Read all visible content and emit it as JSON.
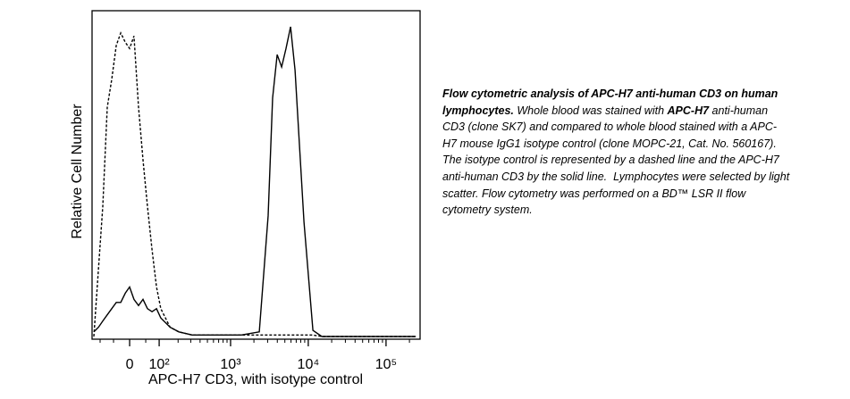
{
  "chart_data": {
    "type": "line",
    "xlabel": "APC-H7 CD3, with isotype control",
    "ylabel": "Relative Cell Number",
    "xscale": "biexponential",
    "xlim": [
      -137,
      274000
    ],
    "ylim": [
      0,
      100
    ],
    "xticks": [
      0,
      {
        "value": 100,
        "label": "10²"
      },
      {
        "value": 1000,
        "label": "10³"
      },
      {
        "value": 10000,
        "label": "10⁴"
      },
      {
        "value": 100000,
        "label": "10⁵"
      }
    ],
    "xminorticks": [
      -100,
      -50,
      50,
      200,
      300,
      400,
      500,
      600,
      700,
      800,
      900,
      2000,
      3000,
      4000,
      5000,
      6000,
      7000,
      8000,
      9000,
      20000,
      30000,
      40000,
      50000,
      60000,
      70000,
      80000,
      90000,
      200000
    ],
    "x": [
      -128,
      -107,
      -89,
      -72,
      -56,
      -41,
      -27,
      -13,
      0,
      13,
      27,
      41,
      56,
      72,
      89,
      107,
      152,
      205,
      314,
      474,
      811,
      1375,
      2345,
      3050,
      3480,
      3980,
      4545,
      5180,
      5920,
      6760,
      8810,
      11470,
      14950,
      43100,
      241000
    ],
    "series": [
      {
        "name": "isotype control",
        "color": "#000000",
        "line_style": "dashed",
        "values": [
          0,
          22,
          42,
          74,
          83,
          94,
          98,
          95,
          93,
          97,
          74,
          57,
          42,
          28,
          16,
          9,
          3,
          1.5,
          0.5,
          0.5,
          0.5,
          0.5,
          0.5,
          0.5,
          0.5,
          0.5,
          0.5,
          0.5,
          0.5,
          0.5,
          0.5,
          0.5,
          0,
          0,
          0
        ]
      },
      {
        "name": "anti-human CD3",
        "color": "#000000",
        "line_style": "solid",
        "values": [
          1.5,
          3,
          5,
          7,
          9,
          11,
          11,
          14,
          16,
          12,
          10,
          12,
          9,
          8,
          9,
          6,
          3,
          1.5,
          0.5,
          0.5,
          0.5,
          0.5,
          1.5,
          39,
          77,
          91,
          87,
          93,
          100,
          86,
          37,
          2,
          0,
          0,
          0
        ]
      }
    ]
  },
  "caption": [
    {
      "text": "Flow cytometric analysis of APC-H7 anti-human CD3 on human lymphocytes.",
      "bold": true
    },
    {
      "text": " Whole blood was stained with ",
      "bold": false
    },
    {
      "text": "APC-H7",
      "bold": true
    },
    {
      "text": " anti-human CD3 (clone SK7) and compared to whole blood stained with a APC-H7 mouse IgG1 isotype control (clone MOPC-21, Cat. No. 560167).  The isotype control is represented by a dashed line and the APC-H7 anti-human CD3 by the solid line.  Lymphocytes were selected by light scatter. Flow cytometry was performed on a BD™ LSR II flow cytometry system.",
      "bold": false
    }
  ]
}
